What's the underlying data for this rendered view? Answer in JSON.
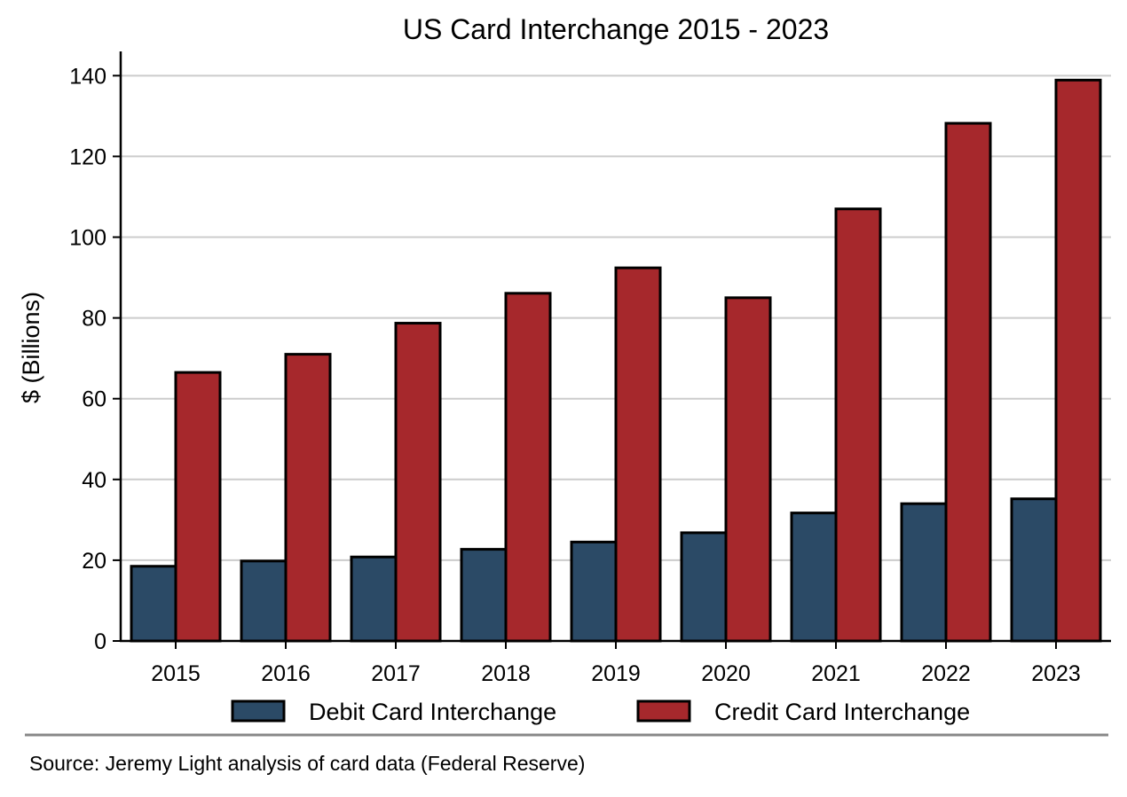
{
  "chart_data": {
    "type": "bar",
    "title": "US Card Interchange 2015 - 2023",
    "xlabel": "",
    "ylabel": "$ (Billions)",
    "categories": [
      "2015",
      "2016",
      "2017",
      "2018",
      "2019",
      "2020",
      "2021",
      "2022",
      "2023"
    ],
    "series": [
      {
        "name": "Debit Card Interchange",
        "color": "#2b4a66",
        "values": [
          18.5,
          19.8,
          20.8,
          22.7,
          24.5,
          26.8,
          31.7,
          34.0,
          35.2
        ]
      },
      {
        "name": "Credit Card Interchange",
        "color": "#a6282c",
        "values": [
          66.5,
          71.0,
          78.7,
          86.1,
          92.4,
          85.0,
          107.0,
          128.2,
          138.9
        ]
      }
    ],
    "ylim": [
      0,
      146
    ],
    "yticks": [
      0,
      20,
      40,
      60,
      80,
      100,
      120,
      140
    ],
    "grid": "horizontal",
    "legend": "bottom-center"
  },
  "source_note": "Source: Jeremy Light analysis of card data (Federal Reserve)"
}
